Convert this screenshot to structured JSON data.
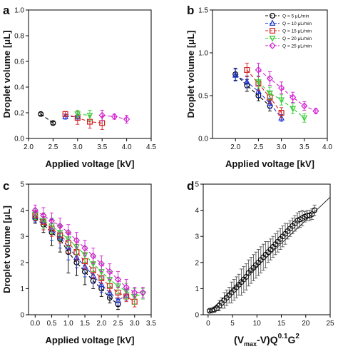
{
  "figure": {
    "width": 474,
    "height": 496
  },
  "chart_data": [
    {
      "panel": "a",
      "type": "line",
      "xlabel": "Applied voltage [kV]",
      "ylabel": "Droplet volume [μL]",
      "xlim": [
        2.0,
        4.5
      ],
      "ylim": [
        0.0,
        1.0
      ],
      "xticks": [
        "2.0",
        "2.5",
        "3.0",
        "3.5",
        "4.0",
        "4.5"
      ],
      "yticks": [
        "0.0",
        "0.2",
        "0.4",
        "0.6",
        "0.8",
        "1.0"
      ],
      "grid": false,
      "legend": "none",
      "series": [
        {
          "key": "q5",
          "x": [
            2.25,
            2.5
          ],
          "y": [
            0.19,
            0.12
          ],
          "err": [
            0.01,
            0.01
          ]
        },
        {
          "key": "q10",
          "x": [
            2.75,
            3.0
          ],
          "y": [
            0.17,
            0.17
          ],
          "err": [
            0.02,
            0.02
          ]
        },
        {
          "key": "q15",
          "x": [
            2.75,
            3.0,
            3.25,
            3.5
          ],
          "y": [
            0.19,
            0.16,
            0.13,
            0.12
          ],
          "err": [
            0.02,
            0.05,
            0.05,
            0.05
          ]
        },
        {
          "key": "q20",
          "x": [
            3.0,
            3.25
          ],
          "y": [
            0.19,
            0.18
          ],
          "err": [
            0.03,
            0.04
          ]
        },
        {
          "key": "q25",
          "x": [
            3.5,
            3.75,
            4.0
          ],
          "y": [
            0.18,
            0.17,
            0.15
          ],
          "err": [
            0.04,
            0.02,
            0.03
          ]
        }
      ]
    },
    {
      "panel": "b",
      "type": "line",
      "xlabel": "Applied voltage [kV]",
      "ylabel": "Droplet volume [μL]",
      "xlim": [
        1.5,
        4.0
      ],
      "ylim": [
        0.0,
        1.5
      ],
      "xticks": [
        "2.0",
        "2.5",
        "3.0",
        "3.5",
        "4.0"
      ],
      "yticks": [
        "0.0",
        "0.5",
        "1.0",
        "1.5"
      ],
      "grid": false,
      "legend": "top-right",
      "series": [
        {
          "key": "q5",
          "name": "Q = 5 μL/min",
          "x": [
            2.0,
            2.25,
            2.5,
            2.75
          ],
          "y": [
            0.75,
            0.62,
            0.5,
            0.38
          ],
          "err": [
            0.07,
            0.07,
            0.06,
            0.06
          ]
        },
        {
          "key": "q10",
          "name": "Q = 10 μL/min",
          "x": [
            2.0,
            2.25,
            2.5,
            2.75,
            3.0
          ],
          "y": [
            0.74,
            0.66,
            0.55,
            0.41,
            0.24
          ],
          "err": [
            0.07,
            0.07,
            0.07,
            0.06,
            0.04
          ]
        },
        {
          "key": "q15",
          "name": "Q = 15 μL/min",
          "x": [
            2.25,
            2.5,
            2.75,
            3.0
          ],
          "y": [
            0.8,
            0.64,
            0.48,
            0.3
          ],
          "err": [
            0.08,
            0.08,
            0.07,
            0.06
          ]
        },
        {
          "key": "q20",
          "name": "Q = 20 μL/min",
          "x": [
            2.5,
            2.75,
            3.0,
            3.25,
            3.5
          ],
          "y": [
            0.66,
            0.53,
            0.45,
            0.35,
            0.24
          ],
          "err": [
            0.07,
            0.07,
            0.06,
            0.06,
            0.05
          ]
        },
        {
          "key": "q25",
          "name": "Q = 25 μL/min",
          "x": [
            2.5,
            2.75,
            3.0,
            3.25,
            3.5,
            3.75
          ],
          "y": [
            0.8,
            0.7,
            0.59,
            0.48,
            0.38,
            0.32
          ],
          "err": [
            0.08,
            0.08,
            0.07,
            0.06,
            0.05,
            0.03
          ]
        }
      ]
    },
    {
      "panel": "c",
      "type": "line",
      "xlabel": "Applied voltage [kV]",
      "ylabel": "Droplet volume [μL]",
      "xlim": [
        -0.2,
        3.5
      ],
      "ylim": [
        0,
        5
      ],
      "xticks": [
        "0.0",
        "0.5",
        "1.0",
        "1.5",
        "2.0",
        "2.5",
        "3.0",
        "3.5"
      ],
      "yticks": [
        "0",
        "1",
        "2",
        "3",
        "4",
        "5"
      ],
      "grid": false,
      "legend": "none",
      "series": [
        {
          "key": "q5",
          "x": [
            0.0,
            0.25,
            0.5,
            0.75,
            1.0,
            1.25,
            1.5,
            1.75,
            2.0,
            2.25,
            2.5
          ],
          "y": [
            3.7,
            3.45,
            3.15,
            2.9,
            2.4,
            2.0,
            1.65,
            1.3,
            1.0,
            0.65,
            0.4
          ],
          "err": [
            0.2,
            0.3,
            0.5,
            0.5,
            0.8,
            0.5,
            0.5,
            0.3,
            0.3,
            0.2,
            0.2
          ]
        },
        {
          "key": "q10",
          "x": [
            0.0,
            0.25,
            0.5,
            0.75,
            1.0,
            1.25,
            1.5,
            1.75,
            2.0,
            2.25,
            2.5,
            2.75
          ],
          "y": [
            3.75,
            3.55,
            3.25,
            2.95,
            2.6,
            2.2,
            1.85,
            1.5,
            1.15,
            0.85,
            0.55,
            0.75
          ],
          "err": [
            0.2,
            0.3,
            0.4,
            0.4,
            0.5,
            0.4,
            0.4,
            0.3,
            0.3,
            0.2,
            0.2,
            0.2
          ]
        },
        {
          "key": "q15",
          "x": [
            0.0,
            0.25,
            0.5,
            0.75,
            1.0,
            1.25,
            1.5,
            1.75,
            2.0,
            2.25,
            2.5,
            2.75,
            3.0
          ],
          "y": [
            3.8,
            3.55,
            3.3,
            3.05,
            2.75,
            2.4,
            2.05,
            1.7,
            1.4,
            1.1,
            0.85,
            0.7,
            0.5
          ],
          "err": [
            0.2,
            0.3,
            0.3,
            0.3,
            0.4,
            0.3,
            0.3,
            0.3,
            0.2,
            0.2,
            0.2,
            0.2,
            0.2
          ]
        },
        {
          "key": "q20",
          "x": [
            0.0,
            0.25,
            0.5,
            0.75,
            1.0,
            1.25,
            1.5,
            1.75,
            2.0,
            2.25,
            2.5,
            2.75,
            3.0,
            3.25
          ],
          "y": [
            3.85,
            3.6,
            3.4,
            3.15,
            2.9,
            2.6,
            2.3,
            1.95,
            1.65,
            1.35,
            1.1,
            0.9,
            0.7,
            0.8
          ],
          "err": [
            0.2,
            0.3,
            0.3,
            0.3,
            0.3,
            0.3,
            0.3,
            0.3,
            0.3,
            0.3,
            0.3,
            0.3,
            0.3,
            0.2
          ]
        },
        {
          "key": "q25",
          "x": [
            0.0,
            0.25,
            0.5,
            0.75,
            1.0,
            1.25,
            1.5,
            1.75,
            2.0,
            2.25,
            2.5,
            2.75,
            3.0,
            3.25
          ],
          "y": [
            4.0,
            3.8,
            3.6,
            3.4,
            3.15,
            2.85,
            2.55,
            2.25,
            1.95,
            1.65,
            1.35,
            1.05,
            0.85,
            0.85
          ],
          "err": [
            0.2,
            0.3,
            0.3,
            0.3,
            0.3,
            0.3,
            0.3,
            0.3,
            0.3,
            0.3,
            0.3,
            0.3,
            0.2,
            0.2
          ]
        }
      ]
    },
    {
      "panel": "d",
      "type": "scatter",
      "xlabel": "(Vmax-V)Q^0.1G^2",
      "ylabel": "",
      "xlim": [
        -1,
        25
      ],
      "ylim": [
        0,
        5
      ],
      "xticks": [
        "0",
        "5",
        "10",
        "15",
        "20",
        "25"
      ],
      "yticks": [
        "0",
        "1",
        "2",
        "3",
        "4",
        "5"
      ],
      "grid": false,
      "legend": "none",
      "fit_line": {
        "x": [
          0,
          25
        ],
        "y": [
          0.08,
          4.5
        ]
      },
      "points": {
        "x": [
          0.3,
          0.8,
          1.3,
          1.8,
          2.3,
          2.8,
          3.3,
          3.8,
          4.3,
          4.8,
          5.3,
          5.8,
          6.3,
          6.8,
          7.3,
          7.8,
          8.3,
          8.8,
          9.3,
          9.8,
          10.3,
          10.8,
          11.3,
          11.8,
          12.3,
          12.8,
          13.3,
          13.8,
          14.3,
          14.8,
          15.3,
          15.8,
          16.3,
          16.8,
          17.3,
          17.8,
          18.3,
          18.8,
          19.3,
          19.8,
          20.3,
          20.8,
          21.3,
          21.8
        ],
        "y": [
          0.15,
          0.17,
          0.2,
          0.25,
          0.35,
          0.45,
          0.55,
          0.65,
          0.75,
          0.85,
          0.95,
          1.05,
          1.15,
          1.25,
          1.35,
          1.45,
          1.6,
          1.7,
          1.8,
          1.9,
          2.0,
          2.1,
          2.2,
          2.3,
          2.4,
          2.5,
          2.6,
          2.7,
          2.8,
          2.9,
          3.0,
          3.1,
          3.2,
          3.3,
          3.4,
          3.5,
          3.6,
          3.65,
          3.7,
          3.75,
          3.8,
          3.8,
          3.85,
          4.0
        ],
        "err": [
          0.05,
          0.05,
          0.1,
          0.1,
          0.2,
          0.2,
          0.3,
          0.3,
          0.3,
          0.4,
          0.4,
          0.4,
          0.4,
          0.5,
          0.5,
          0.5,
          0.5,
          0.5,
          0.5,
          0.5,
          0.5,
          0.5,
          0.5,
          0.5,
          0.4,
          0.4,
          0.4,
          0.4,
          0.4,
          0.4,
          0.4,
          0.4,
          0.3,
          0.3,
          0.3,
          0.3,
          0.3,
          0.3,
          0.3,
          0.2,
          0.2,
          0.2,
          0.2,
          0.2
        ]
      }
    }
  ],
  "styles": {
    "q5": {
      "color": "#000000",
      "marker": "circle"
    },
    "q10": {
      "color": "#1f35d6",
      "marker": "triangle-up"
    },
    "q15": {
      "color": "#d42020",
      "marker": "square"
    },
    "q20": {
      "color": "#33cc33",
      "marker": "triangle-down"
    },
    "q25": {
      "color": "#d21fd2",
      "marker": "diamond"
    }
  }
}
